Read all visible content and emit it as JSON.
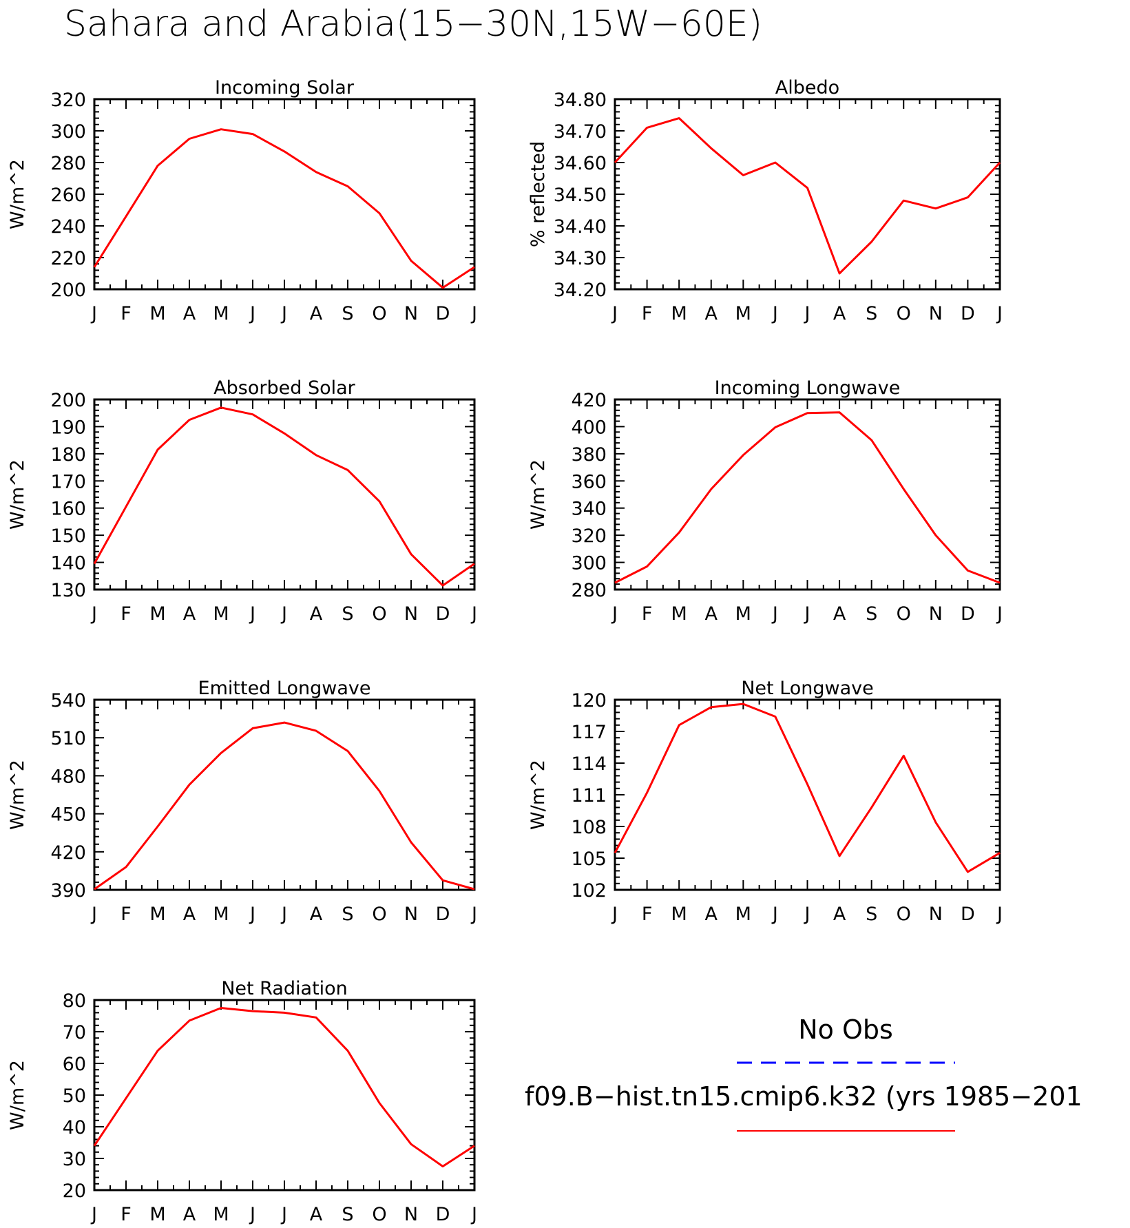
{
  "title": "Sahara and Arabia(15−30N,15W−60E)",
  "months": [
    "J",
    "F",
    "M",
    "A",
    "M",
    "J",
    "J",
    "A",
    "S",
    "O",
    "N",
    "D",
    "J"
  ],
  "series_color": "#ff0000",
  "obs_color": "#0000ff",
  "legend": {
    "obs_label": "No Obs",
    "model_label": "f09.B−hist.tn15.cmip6.k32 (yrs 1985−201"
  },
  "chart_data": [
    {
      "type": "line",
      "title": "Incoming Solar",
      "ylabel": "W/m^2",
      "ylim": [
        200,
        320
      ],
      "yticks": [
        200,
        220,
        240,
        260,
        280,
        300,
        320
      ],
      "ytick_labels": [
        "200",
        "220",
        "240",
        "260",
        "280",
        "300",
        "320"
      ],
      "x": [
        "J",
        "F",
        "M",
        "A",
        "M",
        "J",
        "J",
        "A",
        "S",
        "O",
        "N",
        "D",
        "J"
      ],
      "series": [
        {
          "values": [
            214,
            246,
            278,
            295,
            301,
            298,
            287,
            274,
            265,
            248,
            218,
            201,
            214
          ]
        }
      ]
    },
    {
      "type": "line",
      "title": "Albedo",
      "ylabel": "% reflected",
      "ylim": [
        34.2,
        34.8
      ],
      "yticks": [
        34.2,
        34.3,
        34.4,
        34.5,
        34.6,
        34.7,
        34.8
      ],
      "ytick_labels": [
        "34.20",
        "34.30",
        "34.40",
        "34.50",
        "34.60",
        "34.70",
        "34.80"
      ],
      "x": [
        "J",
        "F",
        "M",
        "A",
        "M",
        "J",
        "J",
        "A",
        "S",
        "O",
        "N",
        "D",
        "J"
      ],
      "series": [
        {
          "values": [
            34.6,
            34.71,
            34.74,
            34.645,
            34.56,
            34.6,
            34.52,
            34.25,
            34.35,
            34.48,
            34.455,
            34.49,
            34.6
          ]
        }
      ]
    },
    {
      "type": "line",
      "title": "Absorbed Solar",
      "ylabel": "W/m^2",
      "ylim": [
        130,
        200
      ],
      "yticks": [
        130,
        140,
        150,
        160,
        170,
        180,
        190,
        200
      ],
      "ytick_labels": [
        "130",
        "140",
        "150",
        "160",
        "170",
        "180",
        "190",
        "200"
      ],
      "x": [
        "J",
        "F",
        "M",
        "A",
        "M",
        "J",
        "J",
        "A",
        "S",
        "O",
        "N",
        "D",
        "J"
      ],
      "series": [
        {
          "values": [
            139.5,
            160.5,
            181.5,
            192.5,
            197,
            194.5,
            187.5,
            179.5,
            174,
            162.5,
            143,
            131.5,
            139.5
          ]
        }
      ]
    },
    {
      "type": "line",
      "title": "Incoming Longwave",
      "ylabel": "W/m^2",
      "ylim": [
        280,
        420
      ],
      "yticks": [
        280,
        300,
        320,
        340,
        360,
        380,
        400,
        420
      ],
      "ytick_labels": [
        "280",
        "300",
        "320",
        "340",
        "360",
        "380",
        "400",
        "420"
      ],
      "x": [
        "J",
        "F",
        "M",
        "A",
        "M",
        "J",
        "J",
        "A",
        "S",
        "O",
        "N",
        "D",
        "J"
      ],
      "series": [
        {
          "values": [
            285,
            297,
            322,
            354,
            379,
            399.5,
            410,
            410.5,
            390,
            354,
            320,
            294,
            285
          ]
        }
      ]
    },
    {
      "type": "line",
      "title": "Emitted Longwave",
      "ylabel": "W/m^2",
      "ylim": [
        390,
        540
      ],
      "yticks": [
        390,
        420,
        450,
        480,
        510,
        540
      ],
      "ytick_labels": [
        "390",
        "420",
        "450",
        "480",
        "510",
        "540"
      ],
      "x": [
        "J",
        "F",
        "M",
        "A",
        "M",
        "J",
        "J",
        "A",
        "S",
        "O",
        "N",
        "D",
        "J"
      ],
      "series": [
        {
          "values": [
            390.5,
            408,
            440,
            473,
            498,
            517.5,
            522,
            515.5,
            499.5,
            468,
            427.5,
            397.5,
            390.5
          ]
        }
      ]
    },
    {
      "type": "line",
      "title": "Net Longwave",
      "ylabel": "W/m^2",
      "ylim": [
        102,
        120
      ],
      "yticks": [
        102,
        105,
        108,
        111,
        114,
        117,
        120
      ],
      "ytick_labels": [
        "102",
        "105",
        "108",
        "111",
        "114",
        "117",
        "120"
      ],
      "x": [
        "J",
        "F",
        "M",
        "A",
        "M",
        "J",
        "J",
        "A",
        "S",
        "O",
        "N",
        "D",
        "J"
      ],
      "series": [
        {
          "values": [
            105.5,
            111.2,
            117.6,
            119.3,
            119.6,
            118.4,
            112,
            105.2,
            109.8,
            114.7,
            108.4,
            103.7,
            105.5
          ]
        }
      ]
    },
    {
      "type": "line",
      "title": "Net Radiation",
      "ylabel": "W/m^2",
      "ylim": [
        20,
        80
      ],
      "yticks": [
        20,
        30,
        40,
        50,
        60,
        70,
        80
      ],
      "ytick_labels": [
        "20",
        "30",
        "40",
        "50",
        "60",
        "70",
        "80"
      ],
      "x": [
        "J",
        "F",
        "M",
        "A",
        "M",
        "J",
        "J",
        "A",
        "S",
        "O",
        "N",
        "D",
        "J"
      ],
      "series": [
        {
          "values": [
            34,
            49,
            64,
            73.5,
            77.5,
            76.5,
            76,
            74.5,
            64,
            47.5,
            34.5,
            27.5,
            34
          ]
        }
      ]
    }
  ]
}
